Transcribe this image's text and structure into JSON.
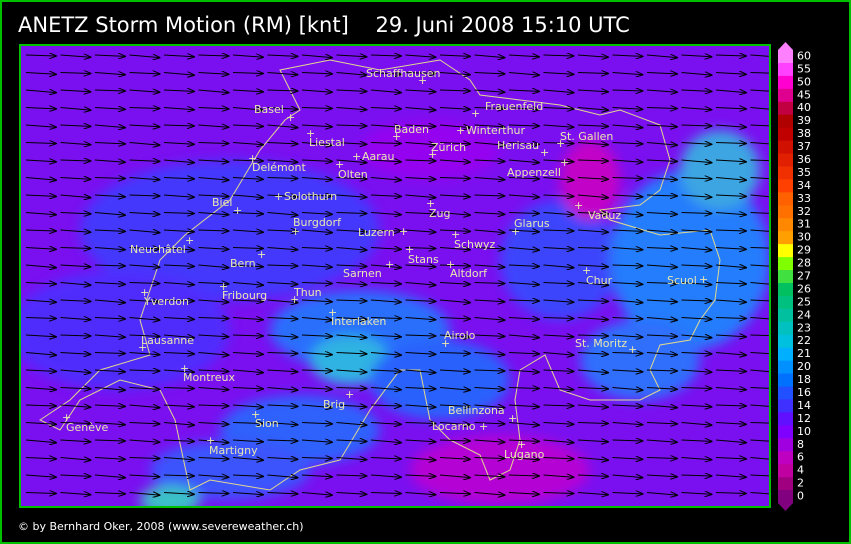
{
  "header": {
    "title": "ANETZ Storm Motion (RM) [knt]    29. Juni 2008 15:10 UTC"
  },
  "cities": [
    "Schaffhausen",
    "Basel",
    "Frauenfeld",
    "Baden",
    "Winterthur",
    "St. Gallen",
    "Liestal",
    "Zürich",
    "Herisau",
    "Aarau",
    "Delémont",
    "Olten",
    "Appenzell",
    "Solothurn",
    "Biel",
    "Vaduz",
    "Zug",
    "Burgdorf",
    "Glarus",
    "Luzern",
    "Neuchâtel",
    "Schwyz",
    "Bern",
    "Stans",
    "Sarnen",
    "Altdorf",
    "Chur",
    "Scuol",
    "Fribourg",
    "Thun",
    "Yverdon",
    "Interlaken",
    "Airolo",
    "Lausanne",
    "St. Moritz",
    "Montreux",
    "Brig",
    "Bellinzona",
    "Sion",
    "Genève",
    "Locarno",
    "Martigny",
    "Lugano"
  ],
  "legend": {
    "items": [
      {
        "value": 60,
        "color": "#ff80ff"
      },
      {
        "value": 55,
        "color": "#ff40ff"
      },
      {
        "value": 50,
        "color": "#ff00d0"
      },
      {
        "value": 45,
        "color": "#e00090"
      },
      {
        "value": 40,
        "color": "#c00040"
      },
      {
        "value": 39,
        "color": "#b00000"
      },
      {
        "value": 38,
        "color": "#c00000"
      },
      {
        "value": 37,
        "color": "#d01000"
      },
      {
        "value": 36,
        "color": "#e02000"
      },
      {
        "value": 35,
        "color": "#f03000"
      },
      {
        "value": 34,
        "color": "#ff4000"
      },
      {
        "value": 33,
        "color": "#ff6000"
      },
      {
        "value": 32,
        "color": "#ff7000"
      },
      {
        "value": 31,
        "color": "#ff8800"
      },
      {
        "value": 30,
        "color": "#ffa000"
      },
      {
        "value": 29,
        "color": "#ffff00"
      },
      {
        "value": 28,
        "color": "#80ff00"
      },
      {
        "value": 27,
        "color": "#40e040"
      },
      {
        "value": 26,
        "color": "#00c060"
      },
      {
        "value": 25,
        "color": "#00c080"
      },
      {
        "value": 24,
        "color": "#00c0a0"
      },
      {
        "value": 23,
        "color": "#00c0c0"
      },
      {
        "value": 22,
        "color": "#00c0e0"
      },
      {
        "value": 21,
        "color": "#00b0ff"
      },
      {
        "value": 20,
        "color": "#0090ff"
      },
      {
        "value": 18,
        "color": "#0070ff"
      },
      {
        "value": 16,
        "color": "#2050ff"
      },
      {
        "value": 14,
        "color": "#4030ff"
      },
      {
        "value": 12,
        "color": "#6010ff"
      },
      {
        "value": 10,
        "color": "#8000ff"
      },
      {
        "value": 8,
        "color": "#a000e0"
      },
      {
        "value": 6,
        "color": "#c000c0"
      },
      {
        "value": 4,
        "color": "#c000a0"
      },
      {
        "value": 2,
        "color": "#a00080"
      },
      {
        "value": 0,
        "color": "#800080"
      }
    ]
  },
  "footer": {
    "copyright": "© by Bernhard Oker, 2008 (www.severeweather.ch)"
  }
}
